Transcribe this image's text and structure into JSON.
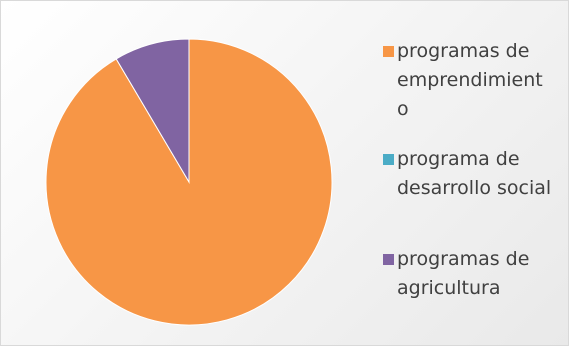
{
  "chart_data": {
    "type": "pie",
    "title": "",
    "slices": [
      {
        "label": "programas de\nemprendimient\no",
        "value": 91.5,
        "color": "#F79646"
      },
      {
        "label": "programa de\ndesarrollo social",
        "value": 0,
        "color": "#4BACC6"
      },
      {
        "label": "programas de\nagricultura",
        "value": 8.5,
        "color": "#8064A2"
      }
    ],
    "legend_position": "right",
    "start_angle_deg": 0,
    "direction": "clockwise"
  }
}
